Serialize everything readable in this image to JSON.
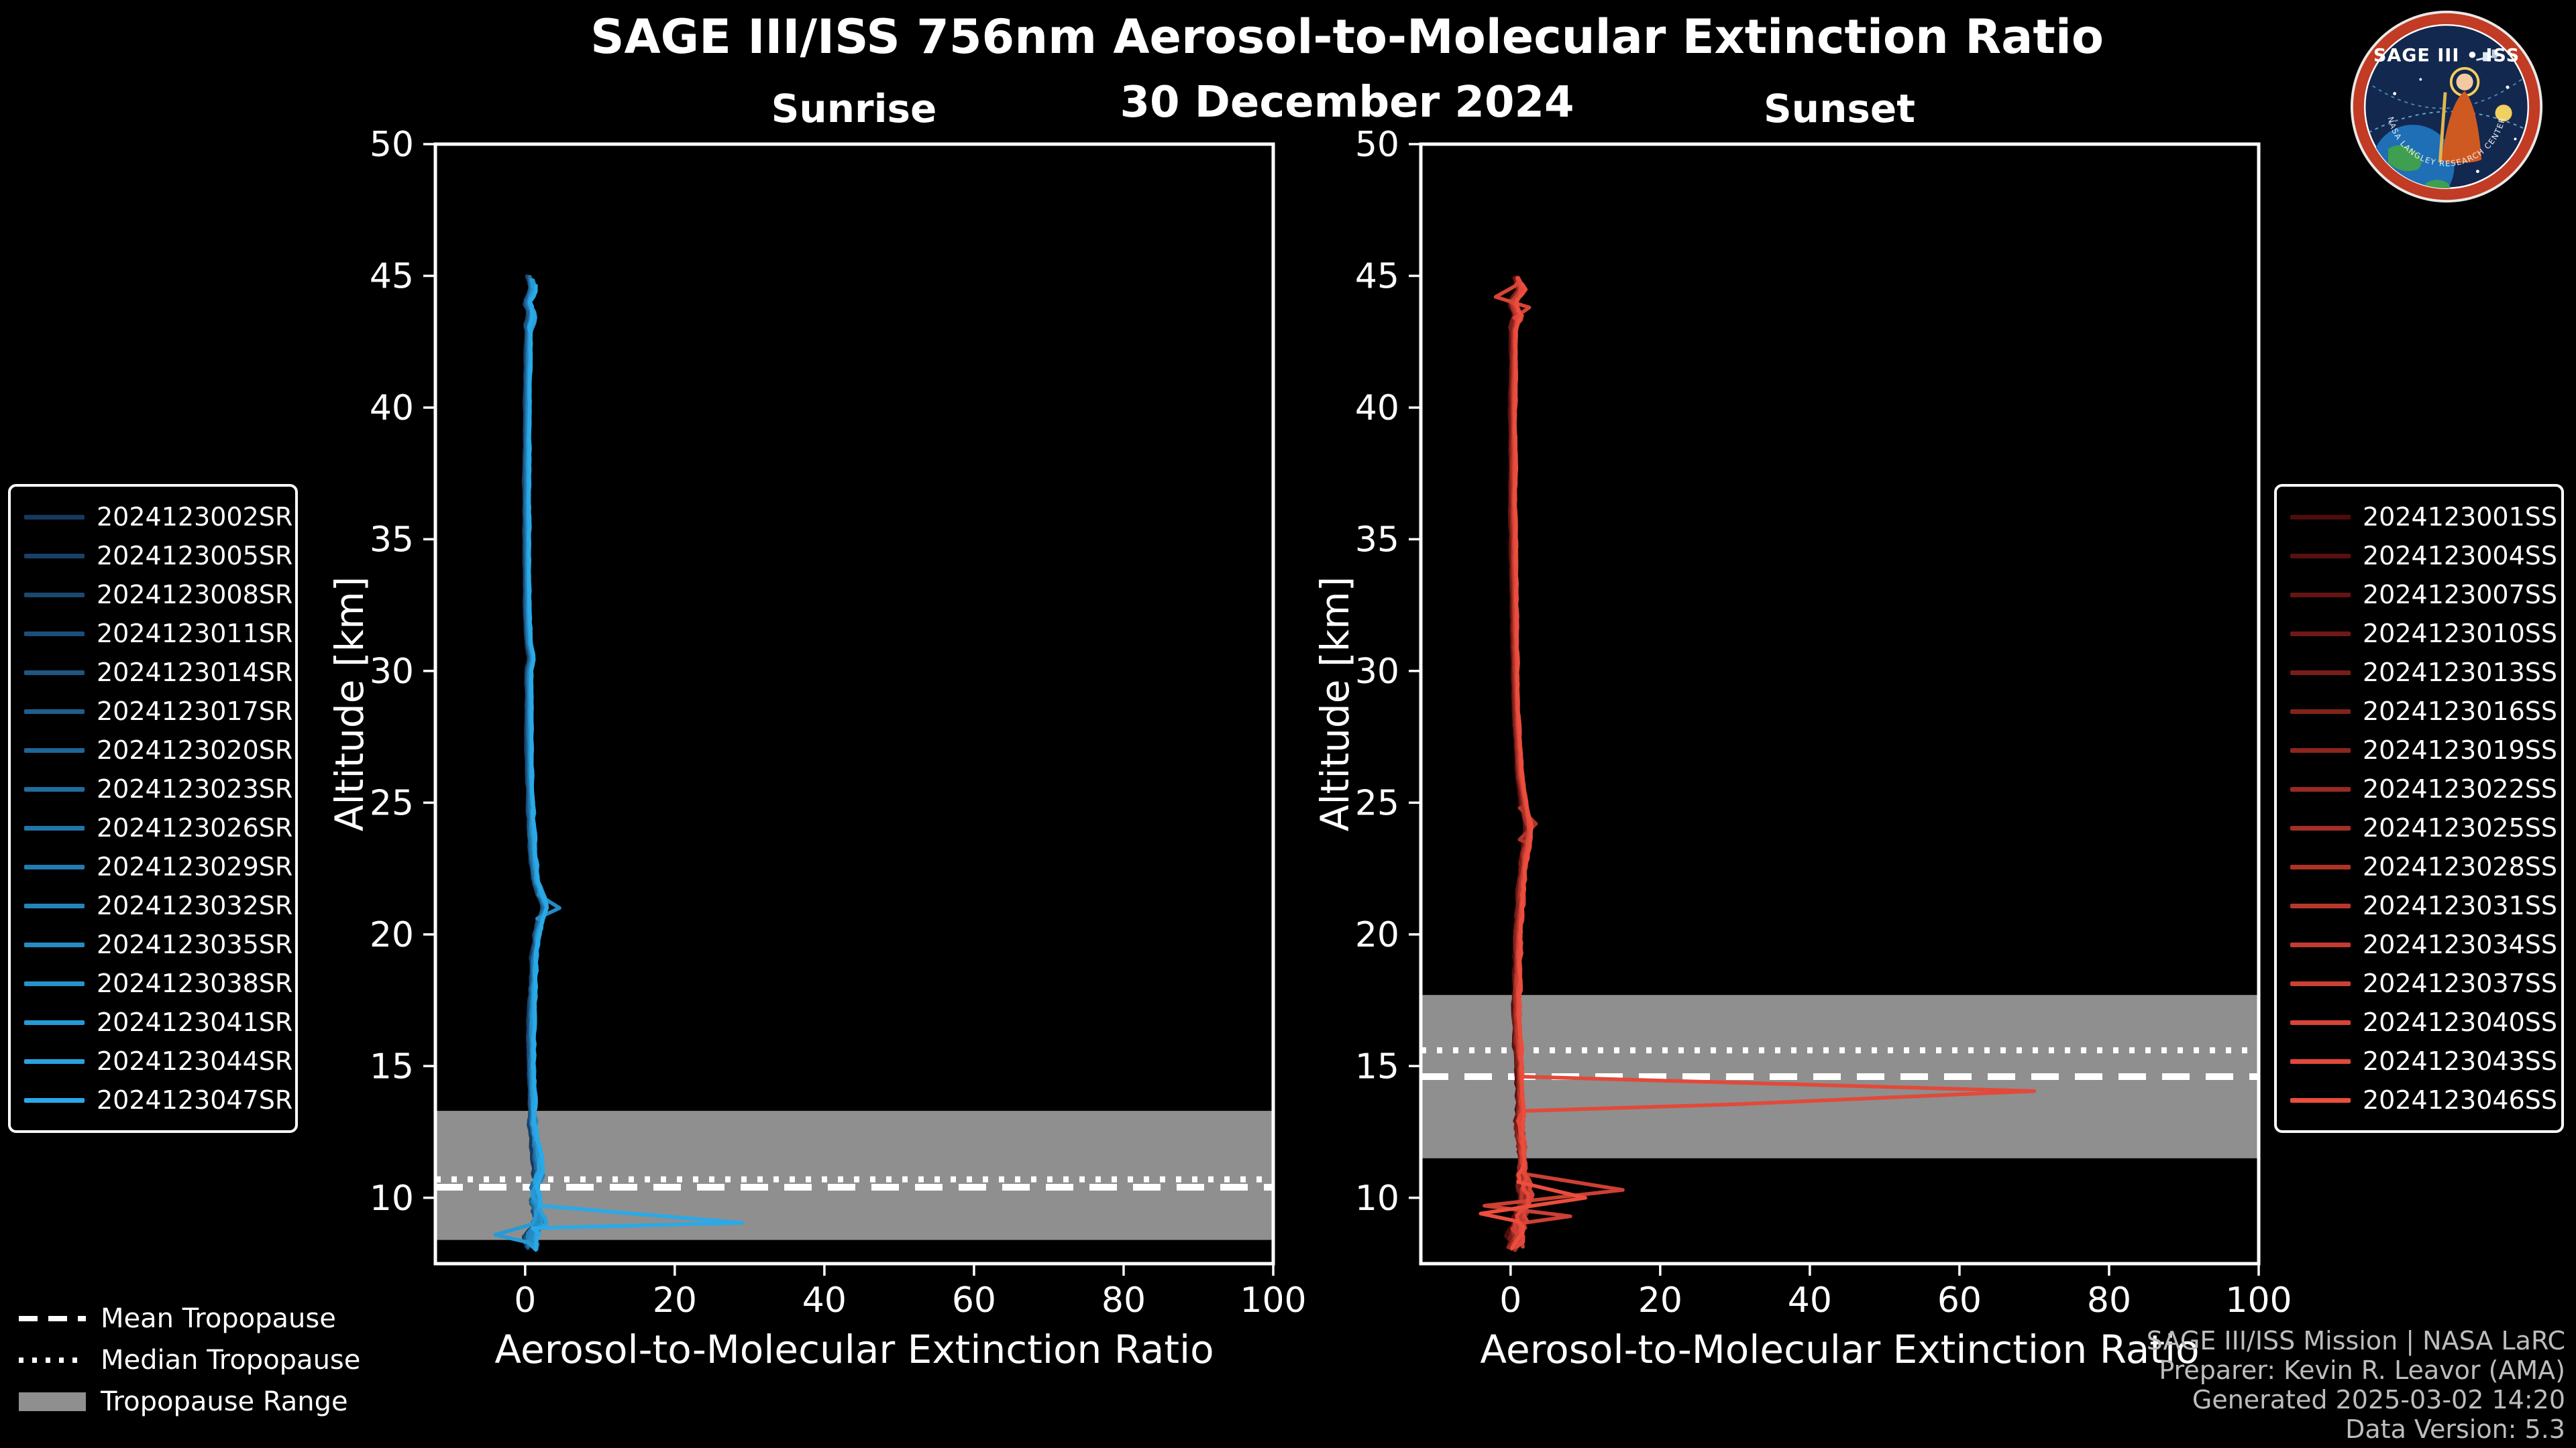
{
  "title": "SAGE III/ISS 756nm Aerosol-to-Molecular Extinction Ratio",
  "date": "30 December 2024",
  "logo": {
    "title": "SAGE III • ISS",
    "ring_text": "NASA LANGLEY RESEARCH CENTER"
  },
  "tropopause_legend": {
    "mean_label": "Mean Tropopause",
    "median_label": "Median Tropopause",
    "range_label": "Tropopause Range"
  },
  "attribution": {
    "line1": "SAGE III/ISS Mission | NASA LaRC",
    "line2": "Preparer: Kevin R. Leavor (AMA)",
    "line3": "Generated 2025-03-02 14:20",
    "line4": "Data Version: 5.3"
  },
  "chart_data": [
    {
      "type": "line",
      "title": "Sunrise",
      "xlabel": "Aerosol-to-Molecular Extinction Ratio",
      "ylabel": "Altitude [km]",
      "xlim": [
        -12,
        100
      ],
      "ylim": [
        7.5,
        50
      ],
      "xticks": [
        0,
        20,
        40,
        60,
        80,
        100
      ],
      "yticks": [
        10,
        15,
        20,
        25,
        30,
        35,
        40,
        45,
        50
      ],
      "grid": false,
      "legend_position": "left-outside",
      "color_start": "#17395f",
      "color_end": "#2aa9e8",
      "band_color": "#8f8f8f",
      "noise_scale": 1.0,
      "tropopause": {
        "mean_km": 10.4,
        "median_km": 10.7,
        "range_km": [
          8.4,
          13.3
        ]
      },
      "series_labels": [
        "2024123002SR",
        "2024123005SR",
        "2024123008SR",
        "2024123011SR",
        "2024123014SR",
        "2024123017SR",
        "2024123020SR",
        "2024123023SR",
        "2024123026SR",
        "2024123029SR",
        "2024123032SR",
        "2024123035SR",
        "2024123038SR",
        "2024123041SR",
        "2024123044SR",
        "2024123047SR"
      ],
      "base_profile": [
        [
          45,
          0.6
        ],
        [
          44.5,
          1.1
        ],
        [
          44,
          0.4
        ],
        [
          43.5,
          0.9
        ],
        [
          43,
          0.5
        ],
        [
          42,
          0.4
        ],
        [
          40,
          0.3
        ],
        [
          38,
          0.25
        ],
        [
          36,
          0.2
        ],
        [
          34,
          0.25
        ],
        [
          32,
          0.3
        ],
        [
          31,
          0.5
        ],
        [
          30.5,
          0.9
        ],
        [
          30,
          0.5
        ],
        [
          28,
          0.5
        ],
        [
          26,
          0.6
        ],
        [
          24,
          0.8
        ],
        [
          23,
          1.0
        ],
        [
          22,
          1.4
        ],
        [
          21.5,
          2.1
        ],
        [
          21,
          2.7
        ],
        [
          20.5,
          2.0
        ],
        [
          20,
          1.6
        ],
        [
          19,
          1.2
        ],
        [
          18,
          1.0
        ],
        [
          16,
          0.8
        ],
        [
          14,
          0.9
        ],
        [
          13,
          1.0
        ],
        [
          12,
          1.4
        ],
        [
          11,
          1.8
        ],
        [
          10.5,
          1.5
        ],
        [
          10,
          1.2
        ],
        [
          9.5,
          1.6
        ],
        [
          9,
          1.8
        ],
        [
          8.5,
          0.8
        ],
        [
          8,
          0.8
        ]
      ],
      "anomalies": [
        {
          "series": 15,
          "points": [
            [
              9.7,
              2
            ],
            [
              9.05,
              29
            ],
            [
              8.85,
              1
            ]
          ]
        },
        {
          "series": 13,
          "points": [
            [
              9.0,
              1
            ],
            [
              8.6,
              -4
            ],
            [
              8.3,
              0.5
            ]
          ]
        },
        {
          "series": 11,
          "points": [
            [
              21.5,
              1.8
            ],
            [
              21.0,
              4.6
            ],
            [
              20.6,
              1.6
            ]
          ]
        }
      ]
    },
    {
      "type": "line",
      "title": "Sunset",
      "xlabel": "Aerosol-to-Molecular Extinction Ratio",
      "ylabel": "Altitude [km]",
      "xlim": [
        -12,
        100
      ],
      "ylim": [
        7.5,
        50
      ],
      "xticks": [
        0,
        20,
        40,
        60,
        80,
        100
      ],
      "yticks": [
        10,
        15,
        20,
        25,
        30,
        35,
        40,
        45,
        50
      ],
      "grid": false,
      "legend_position": "right-outside",
      "color_start": "#4f0c0c",
      "color_end": "#ec4d3d",
      "band_color": "#8f8f8f",
      "noise_scale": 1.25,
      "tropopause": {
        "mean_km": 14.6,
        "median_km": 15.6,
        "range_km": [
          11.5,
          17.7
        ]
      },
      "series_labels": [
        "2024123001SS",
        "2024123004SS",
        "2024123007SS",
        "2024123010SS",
        "2024123013SS",
        "2024123016SS",
        "2024123019SS",
        "2024123022SS",
        "2024123025SS",
        "2024123028SS",
        "2024123031SS",
        "2024123034SS",
        "2024123037SS",
        "2024123040SS",
        "2024123043SS",
        "2024123046SS"
      ],
      "base_profile": [
        [
          45,
          0.7
        ],
        [
          44.5,
          1.4
        ],
        [
          44,
          0.3
        ],
        [
          43.5,
          1.0
        ],
        [
          43,
          0.4
        ],
        [
          42,
          0.4
        ],
        [
          40,
          0.3
        ],
        [
          38,
          0.3
        ],
        [
          36,
          0.3
        ],
        [
          34,
          0.4
        ],
        [
          32,
          0.5
        ],
        [
          30,
          0.6
        ],
        [
          28,
          0.8
        ],
        [
          26,
          1.2
        ],
        [
          25,
          1.8
        ],
        [
          24,
          2.4
        ],
        [
          23,
          1.8
        ],
        [
          22,
          1.5
        ],
        [
          21,
          1.2
        ],
        [
          20,
          1.0
        ],
        [
          18,
          0.8
        ],
        [
          16,
          0.9
        ],
        [
          15,
          1.2
        ],
        [
          14,
          1.3
        ],
        [
          13,
          1.2
        ],
        [
          12,
          1.4
        ],
        [
          11,
          1.6
        ],
        [
          10.5,
          1.8
        ],
        [
          10,
          2.0
        ],
        [
          9.5,
          1.4
        ],
        [
          9,
          1.0
        ],
        [
          8.5,
          0.7
        ],
        [
          8,
          0.6
        ]
      ],
      "anomalies": [
        {
          "series": 14,
          "points": [
            [
              14.6,
              1.5
            ],
            [
              14.05,
              70
            ],
            [
              13.55,
              30
            ],
            [
              13.3,
              2
            ]
          ]
        },
        {
          "series": 12,
          "points": [
            [
              10.9,
              2
            ],
            [
              10.3,
              15
            ],
            [
              9.7,
              -3.5
            ],
            [
              9.3,
              8
            ],
            [
              9.0,
              0.5
            ]
          ]
        },
        {
          "series": 15,
          "points": [
            [
              10.6,
              1
            ],
            [
              10.0,
              10
            ],
            [
              9.4,
              -4
            ],
            [
              9.1,
              1
            ]
          ]
        },
        {
          "series": 9,
          "points": [
            [
              24.8,
              1.2
            ],
            [
              24.2,
              3.4
            ],
            [
              23.6,
              1.2
            ]
          ]
        },
        {
          "series": 13,
          "points": [
            [
              44.6,
              0.5
            ],
            [
              44.2,
              -2
            ],
            [
              43.8,
              2.5
            ],
            [
              43.4,
              0.5
            ]
          ]
        }
      ]
    }
  ]
}
